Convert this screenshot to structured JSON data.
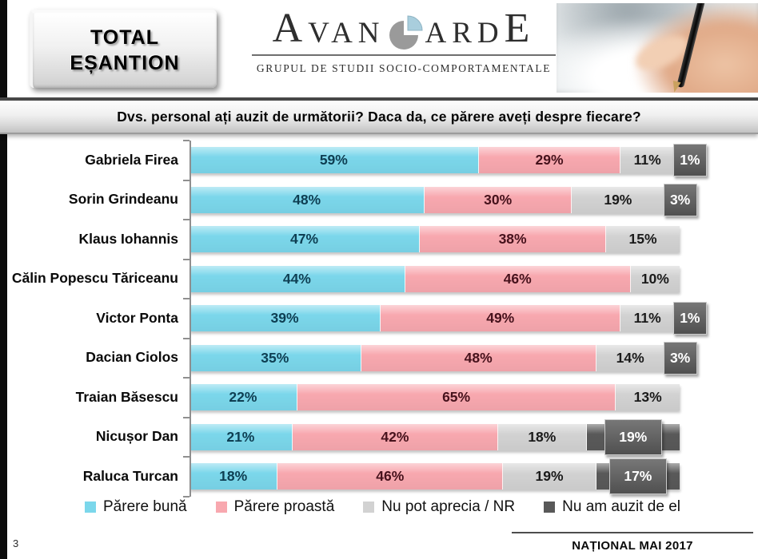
{
  "header": {
    "badge": {
      "line1": "TOTAL",
      "line2": "EȘANTION"
    },
    "logo": {
      "part1": "A",
      "part2": "VAN",
      "part3": "ARD",
      "part4": "E",
      "subtitle": "GRUPUL DE STUDII SOCIO-COMPORTAMENTALE"
    }
  },
  "title": "Dvs. personal ați auzit de următorii? Daca da, ce părere aveți despre fiecare?",
  "chart_data": {
    "type": "bar",
    "orientation": "horizontal",
    "stacked": true,
    "categories": [
      "Gabriela Firea",
      "Sorin Grindeanu",
      "Klaus Iohannis",
      "Călin Popescu Tăriceanu",
      "Victor Ponta",
      "Dacian Ciolos",
      "Traian Băsescu",
      "Nicușor Dan",
      "Raluca Turcan"
    ],
    "series": [
      {
        "name": "Părere bună",
        "color": "#7BD7EB",
        "label_color": "#0E3E52",
        "values": [
          59,
          48,
          47,
          44,
          39,
          35,
          22,
          21,
          18
        ]
      },
      {
        "name": "Părere proastă",
        "color": "#F8A8AF",
        "label_color": "#46121C",
        "values": [
          29,
          30,
          38,
          46,
          49,
          48,
          65,
          42,
          46
        ]
      },
      {
        "name": "Nu pot aprecia / NR",
        "color": "#D2D2D2",
        "label_color": "#1A1A1A",
        "values": [
          11,
          19,
          15,
          10,
          11,
          14,
          13,
          18,
          19
        ]
      },
      {
        "name": "Nu am auzit de el",
        "color": "#595959",
        "label_color": "#FFFFFF",
        "values": [
          1,
          3,
          0,
          0,
          1,
          3,
          0,
          19,
          17
        ]
      }
    ],
    "xlim": [
      0,
      100
    ],
    "value_suffix": "%",
    "grid": false,
    "legend_position": "bottom",
    "axis_color": "#8F8F8F"
  },
  "footer": {
    "page_number": "3",
    "caption": "NAȚIONAL MAI 2017"
  }
}
